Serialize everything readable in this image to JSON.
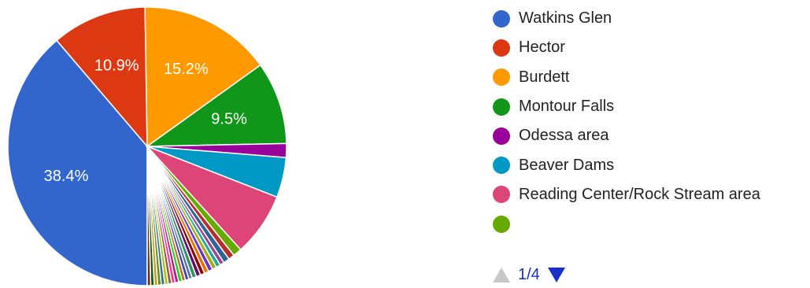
{
  "chart_data": {
    "type": "pie",
    "slices": [
      {
        "label": "Watkins Glen",
        "value": 38.4,
        "color": "#3366cc",
        "data_label": "38.4%"
      },
      {
        "label": "Hector",
        "value": 10.9,
        "color": "#dc3912",
        "data_label": "10.9%"
      },
      {
        "label": "Burdett",
        "value": 15.2,
        "color": "#ff9900",
        "data_label": "15.2%"
      },
      {
        "label": "Montour Falls",
        "value": 9.5,
        "color": "#109618",
        "data_label": "9.5%"
      },
      {
        "label": "Odessa area",
        "value": 1.6,
        "color": "#990099",
        "data_label": ""
      },
      {
        "label": "Beaver Dams",
        "value": 4.6,
        "color": "#0099c6",
        "data_label": ""
      },
      {
        "label": "Reading Center/Rock Stream area",
        "value": 7.3,
        "color": "#dd4477",
        "data_label": ""
      },
      {
        "label": "",
        "value": 1.0,
        "color": "#66aa00",
        "data_label": ""
      },
      {
        "label": "",
        "value": 0.7,
        "color": "#b82e2e",
        "data_label": ""
      },
      {
        "label": "",
        "value": 0.7,
        "color": "#316395",
        "data_label": ""
      },
      {
        "label": "",
        "value": 0.5,
        "color": "#994499",
        "data_label": ""
      },
      {
        "label": "",
        "value": 0.5,
        "color": "#22aa99",
        "data_label": ""
      },
      {
        "label": "",
        "value": 0.5,
        "color": "#aaaa11",
        "data_label": ""
      },
      {
        "label": "",
        "value": 0.5,
        "color": "#6633cc",
        "data_label": ""
      },
      {
        "label": "",
        "value": 0.5,
        "color": "#e67300",
        "data_label": ""
      },
      {
        "label": "",
        "value": 0.5,
        "color": "#8b0707",
        "data_label": ""
      },
      {
        "label": "",
        "value": 0.5,
        "color": "#651067",
        "data_label": ""
      },
      {
        "label": "",
        "value": 0.5,
        "color": "#329262",
        "data_label": ""
      },
      {
        "label": "",
        "value": 0.4,
        "color": "#5574a6",
        "data_label": ""
      },
      {
        "label": "",
        "value": 0.4,
        "color": "#3b3eac",
        "data_label": ""
      },
      {
        "label": "",
        "value": 0.4,
        "color": "#b77322",
        "data_label": ""
      },
      {
        "label": "",
        "value": 0.4,
        "color": "#16d620",
        "data_label": ""
      },
      {
        "label": "",
        "value": 0.4,
        "color": "#b91383",
        "data_label": ""
      },
      {
        "label": "",
        "value": 0.4,
        "color": "#f4359e",
        "data_label": ""
      },
      {
        "label": "",
        "value": 0.4,
        "color": "#9c5935",
        "data_label": ""
      },
      {
        "label": "",
        "value": 0.4,
        "color": "#a9c413",
        "data_label": ""
      },
      {
        "label": "",
        "value": 0.4,
        "color": "#2a778d",
        "data_label": ""
      },
      {
        "label": "",
        "value": 0.4,
        "color": "#668d1c",
        "data_label": ""
      },
      {
        "label": "",
        "value": 0.4,
        "color": "#bea413",
        "data_label": ""
      },
      {
        "label": "",
        "value": 0.4,
        "color": "#0c5922",
        "data_label": ""
      },
      {
        "label": "",
        "value": 0.4,
        "color": "#743411",
        "data_label": ""
      }
    ],
    "start_angle_deg": 90,
    "legend_position": "right",
    "legend_visible_count": 8,
    "pager": {
      "text": "1/4",
      "prev_enabled": false,
      "next_enabled": true
    }
  }
}
